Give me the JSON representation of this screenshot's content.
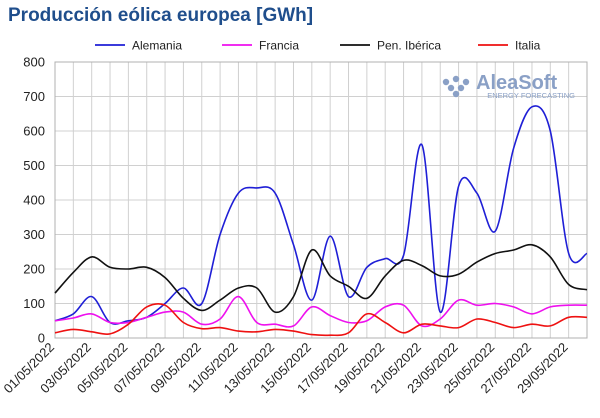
{
  "title": "Producción eólica europea [GWh]",
  "watermark": {
    "name": "AleaSoft",
    "tagline": "ENERGY FORECASTING",
    "color": "#8aa0c6"
  },
  "chart_data": {
    "type": "line",
    "title": "Producción eólica europea [GWh]",
    "xlabel": "",
    "ylabel": "",
    "ylim": [
      0,
      800
    ],
    "yticks": [
      0,
      100,
      200,
      300,
      400,
      500,
      600,
      700,
      800
    ],
    "grid": true,
    "legend_position": "top",
    "x": [
      "01/05/2022",
      "02/05/2022",
      "03/05/2022",
      "04/05/2022",
      "05/05/2022",
      "06/05/2022",
      "07/05/2022",
      "08/05/2022",
      "09/05/2022",
      "10/05/2022",
      "11/05/2022",
      "12/05/2022",
      "13/05/2022",
      "14/05/2022",
      "15/05/2022",
      "16/05/2022",
      "17/05/2022",
      "18/05/2022",
      "19/05/2022",
      "20/05/2022",
      "21/05/2022",
      "22/05/2022",
      "23/05/2022",
      "24/05/2022",
      "25/05/2022",
      "26/05/2022",
      "27/05/2022",
      "28/05/2022",
      "29/05/2022",
      "30/05/2022"
    ],
    "xtick_labels": [
      "01/05/2022",
      "03/05/2022",
      "05/05/2022",
      "07/05/2022",
      "09/05/2022",
      "11/05/2022",
      "13/05/2022",
      "15/05/2022",
      "17/05/2022",
      "19/05/2022",
      "21/05/2022",
      "23/05/2022",
      "25/05/2022",
      "27/05/2022",
      "29/05/2022"
    ],
    "series": [
      {
        "name": "Alemania",
        "color": "#1f1fd6",
        "values": [
          50,
          70,
          120,
          45,
          50,
          60,
          100,
          145,
          100,
          300,
          420,
          435,
          420,
          270,
          110,
          295,
          120,
          205,
          230,
          240,
          560,
          75,
          440,
          420,
          310,
          550,
          670,
          600,
          245,
          245
        ]
      },
      {
        "name": "Francia",
        "color": "#ee11ee",
        "values": [
          50,
          58,
          70,
          45,
          45,
          60,
          75,
          75,
          40,
          55,
          120,
          45,
          40,
          35,
          90,
          65,
          45,
          50,
          90,
          95,
          35,
          55,
          110,
          95,
          100,
          90,
          70,
          90,
          95,
          95
        ]
      },
      {
        "name": "Pen. Ibérica",
        "color": "#111111",
        "values": [
          130,
          190,
          235,
          205,
          200,
          205,
          175,
          115,
          80,
          110,
          145,
          145,
          75,
          120,
          255,
          180,
          150,
          115,
          180,
          225,
          210,
          180,
          185,
          220,
          245,
          255,
          270,
          235,
          155,
          140
        ]
      },
      {
        "name": "Italia",
        "color": "#ee1111",
        "values": [
          15,
          25,
          18,
          12,
          40,
          90,
          95,
          45,
          27,
          30,
          20,
          18,
          25,
          20,
          10,
          8,
          15,
          70,
          45,
          15,
          40,
          35,
          30,
          55,
          45,
          30,
          40,
          35,
          60,
          60
        ]
      }
    ]
  }
}
